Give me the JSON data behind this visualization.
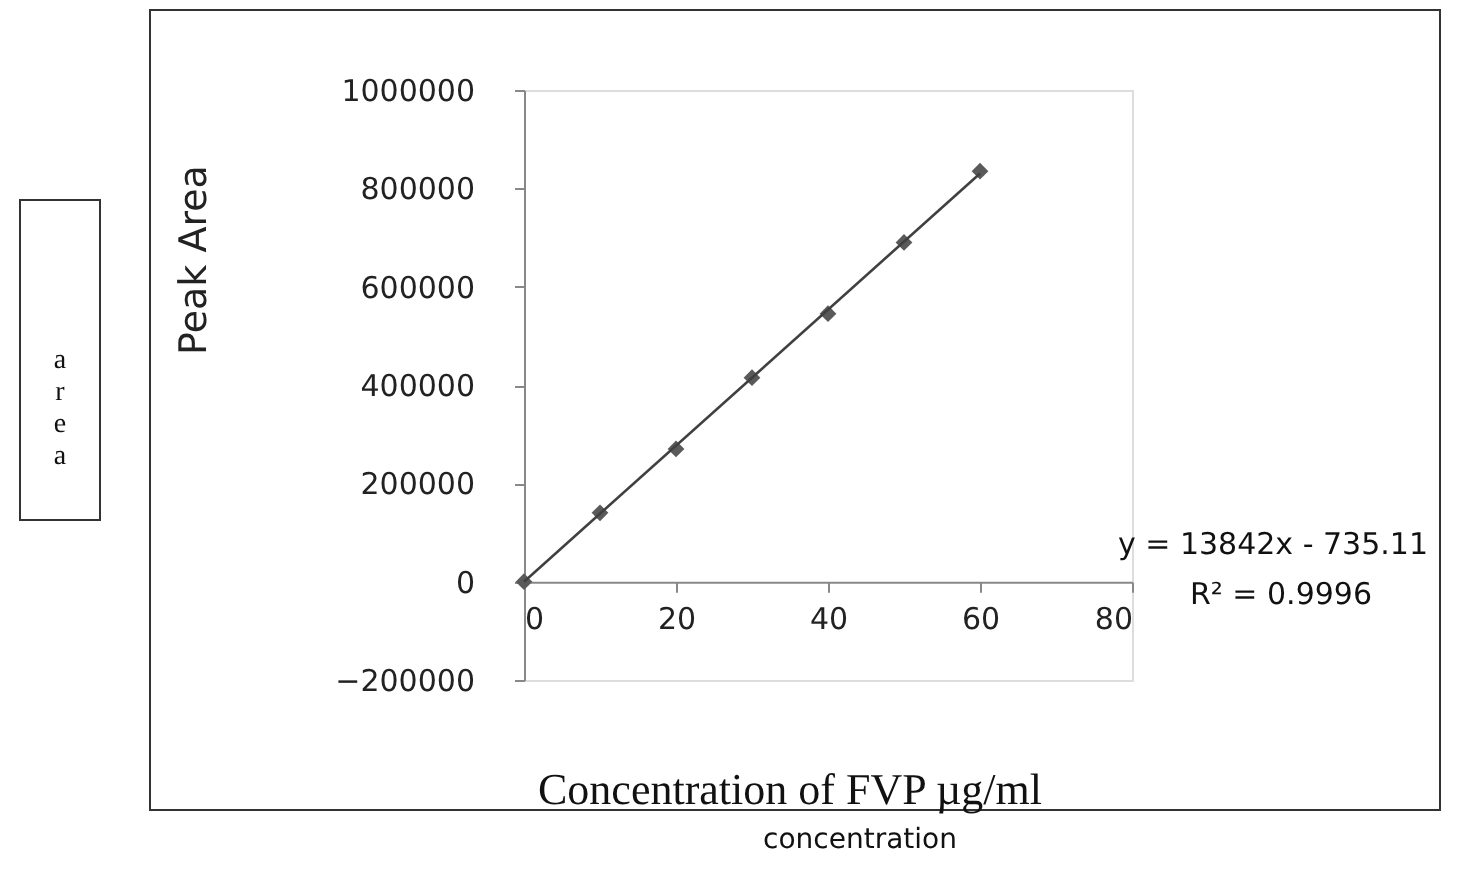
{
  "chart_data": {
    "type": "scatter",
    "xlabel": "Concentration  of FVP µg/ml",
    "ylabel": "Peak Area",
    "x": [
      0,
      10,
      20,
      30,
      40,
      50,
      60
    ],
    "series": [
      {
        "color": "#5a5a5a",
        "marker": "diamond",
        "values": [
          0,
          140000,
          270000,
          415000,
          545000,
          690000,
          835000
        ]
      },
      {
        "type": "line",
        "color": "#404040",
        "line_style": "solid",
        "x": [
          0,
          60
        ],
        "values": [
          0,
          830000
        ]
      }
    ],
    "xlim": [
      0,
      80
    ],
    "xticks": [
      0,
      20,
      40,
      60,
      80
    ],
    "ylim": [
      -200000,
      1000000
    ],
    "yticks": [
      -200000,
      0,
      200000,
      400000,
      600000,
      800000,
      1000000
    ],
    "grid": false,
    "annotations": [
      "y = 13842x - 735.11",
      "R² = 0.9996",
      "area",
      "concentration"
    ]
  }
}
